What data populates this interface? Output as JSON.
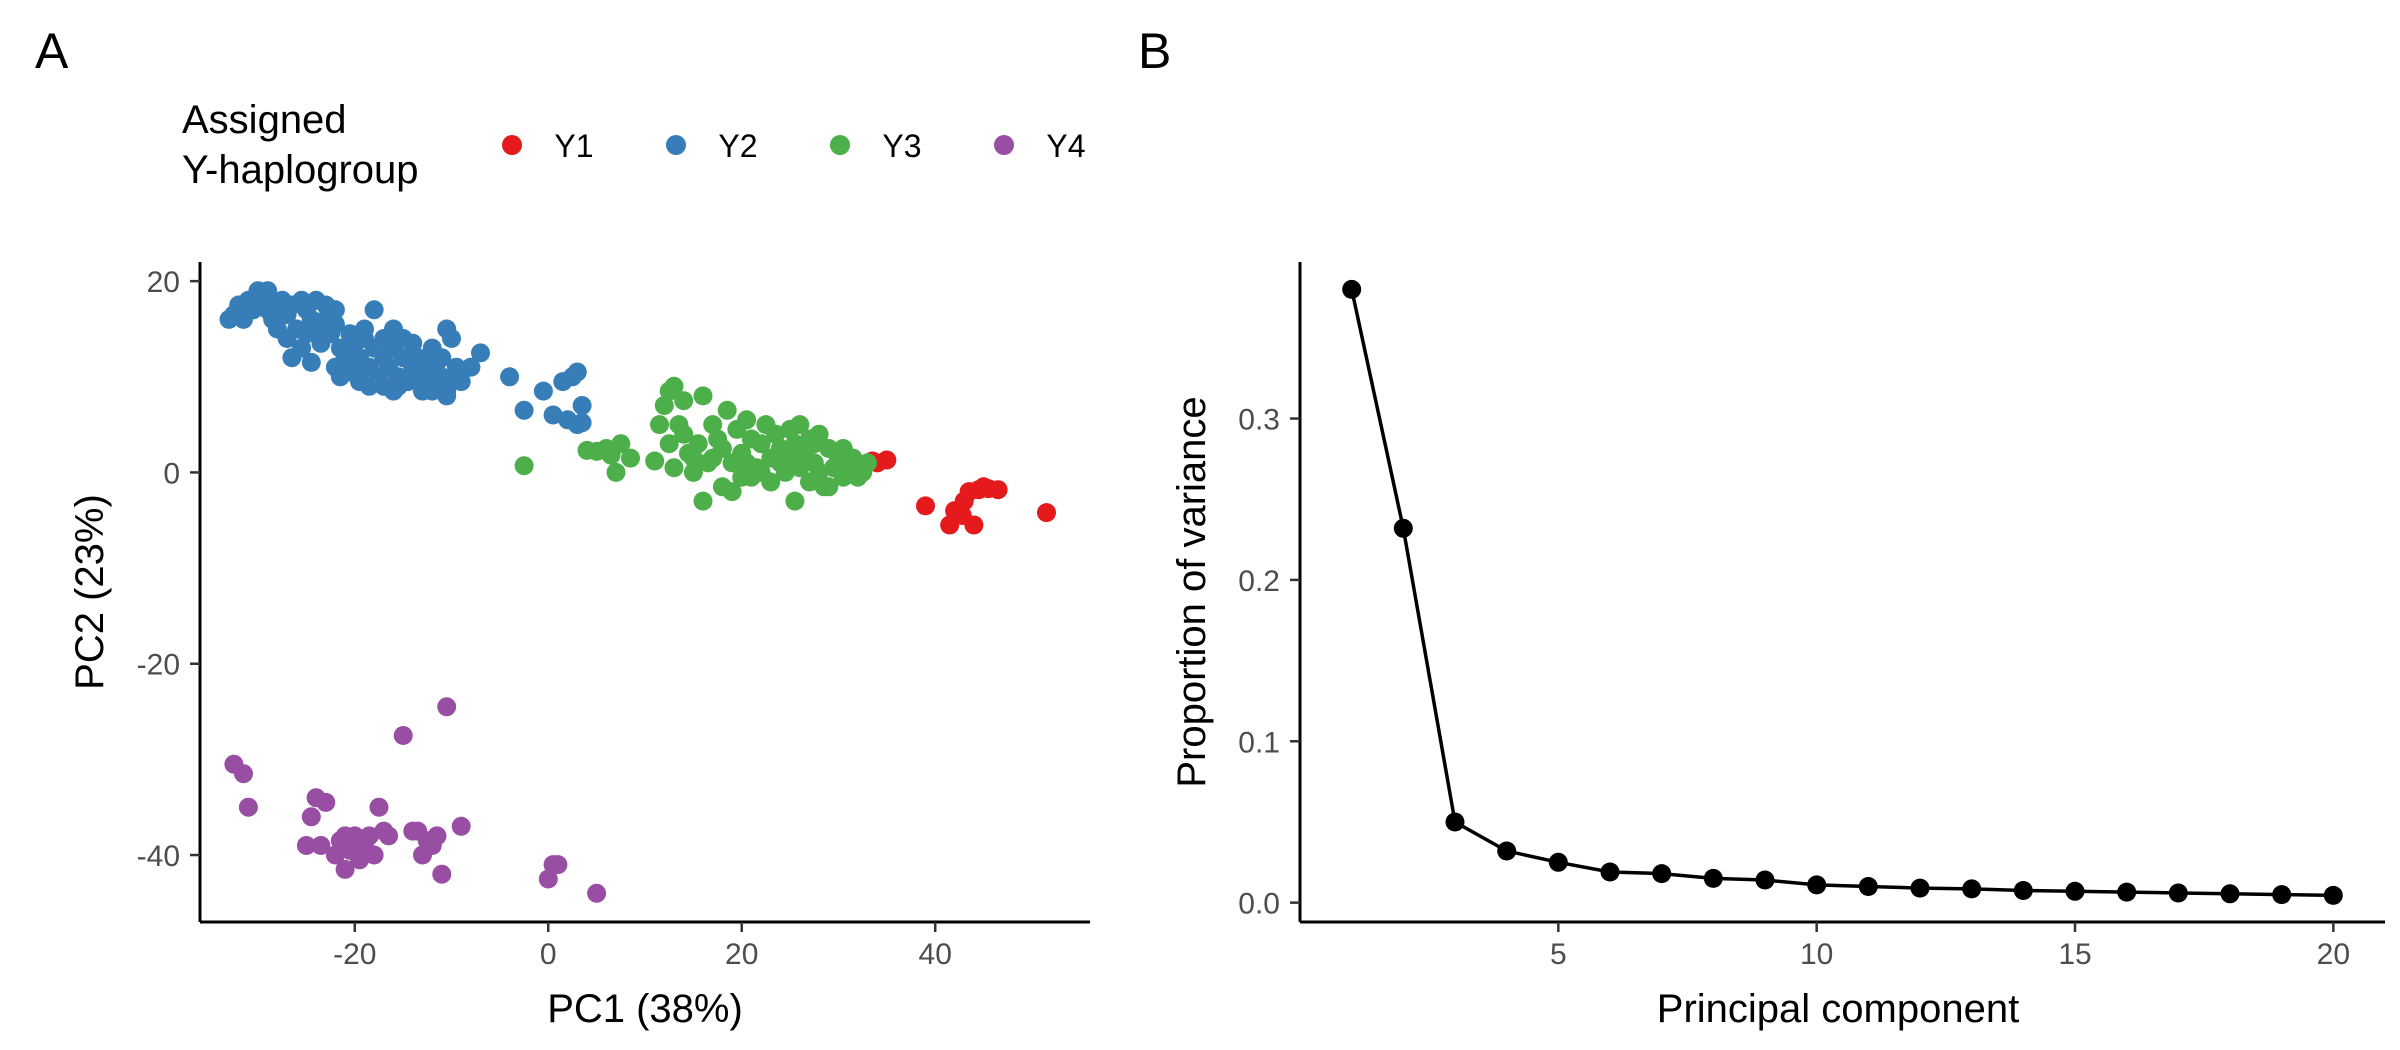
{
  "panel_labels": [
    "A",
    "B"
  ],
  "chart_data": [
    {
      "type": "scatter",
      "xlabel": "PC1 (38%)",
      "ylabel": "PC2 (23%)",
      "xlim": [
        -36,
        56
      ],
      "ylim": [
        -47,
        22
      ],
      "xticks": [
        -20,
        0,
        20,
        40
      ],
      "yticks": [
        -40,
        -20,
        0,
        20
      ],
      "legend": {
        "title_lines": [
          "Assigned",
          "Y-haplogroup"
        ],
        "placement": "top",
        "entries": [
          {
            "name": "Y1",
            "color": "#e41a1c"
          },
          {
            "name": "Y2",
            "color": "#377eb8"
          },
          {
            "name": "Y3",
            "color": "#4daf4a"
          },
          {
            "name": "Y4",
            "color": "#984ea3"
          }
        ]
      },
      "series": [
        {
          "name": "Y1",
          "color": "#e41a1c",
          "points": [
            [
              33.5,
              1.2
            ],
            [
              35,
              1.3
            ],
            [
              34,
              1.0
            ],
            [
              39,
              -3.5
            ],
            [
              41.5,
              -5.5
            ],
            [
              42,
              -4
            ],
            [
              43,
              -3
            ],
            [
              43.5,
              -2
            ],
            [
              44,
              -5.5
            ],
            [
              44.5,
              -1.8
            ],
            [
              45,
              -1.5
            ],
            [
              45.5,
              -1.7
            ],
            [
              46.5,
              -1.8
            ],
            [
              51.5,
              -4.2
            ],
            [
              42.8,
              -4.5
            ]
          ]
        },
        {
          "name": "Y2",
          "color": "#377eb8",
          "points": [
            [
              -33,
              16
            ],
            [
              -32.5,
              16.5
            ],
            [
              -32,
              17.5
            ],
            [
              -31.5,
              16
            ],
            [
              -31,
              18
            ],
            [
              -30.5,
              17
            ],
            [
              -30,
              19
            ],
            [
              -29.5,
              18.5
            ],
            [
              -29,
              17
            ],
            [
              -29,
              19
            ],
            [
              -28.5,
              16
            ],
            [
              -28,
              17.5
            ],
            [
              -27.5,
              18
            ],
            [
              -27,
              16.5
            ],
            [
              -26.5,
              17.5
            ],
            [
              -26,
              15
            ],
            [
              -25.5,
              18
            ],
            [
              -25,
              17
            ],
            [
              -25,
              14.5
            ],
            [
              -24.5,
              16
            ],
            [
              -24,
              15
            ],
            [
              -24,
              18
            ],
            [
              -23.5,
              13.5
            ],
            [
              -23,
              16
            ],
            [
              -23,
              17.5
            ],
            [
              -22.5,
              14.5
            ],
            [
              -22,
              15.5
            ],
            [
              -22,
              17
            ],
            [
              -21.5,
              13
            ],
            [
              -21,
              12
            ],
            [
              -20.5,
              14.5
            ],
            [
              -20,
              11
            ],
            [
              -20,
              13.5
            ],
            [
              -19.5,
              12
            ],
            [
              -19,
              15
            ],
            [
              -18.5,
              11
            ],
            [
              -18,
              13
            ],
            [
              -18,
              17
            ],
            [
              -17.5,
              10
            ],
            [
              -17,
              12
            ],
            [
              -17,
              14
            ],
            [
              -16.5,
              11
            ],
            [
              -16,
              13
            ],
            [
              -16,
              15
            ],
            [
              -15.5,
              10
            ],
            [
              -15,
              12
            ],
            [
              -15,
              14
            ],
            [
              -14.5,
              9.5
            ],
            [
              -14,
              11
            ],
            [
              -14,
              13.5
            ],
            [
              -13.5,
              12
            ],
            [
              -13,
              10
            ],
            [
              -12.5,
              11.5
            ],
            [
              -12,
              9
            ],
            [
              -12,
              13
            ],
            [
              -11.5,
              10.5
            ],
            [
              -11,
              9.5
            ],
            [
              -11,
              12
            ],
            [
              -10.5,
              8.5
            ],
            [
              -10.5,
              15
            ],
            [
              -10,
              10
            ],
            [
              -10,
              14
            ],
            [
              -9.5,
              11
            ],
            [
              -9,
              9.5
            ],
            [
              -26.5,
              12
            ],
            [
              -25.5,
              13
            ],
            [
              -24.5,
              11.5
            ],
            [
              -22,
              11
            ],
            [
              -21.5,
              10
            ],
            [
              -20.5,
              10.5
            ],
            [
              -19.5,
              9.5
            ],
            [
              -18.5,
              9
            ],
            [
              -17,
              9
            ],
            [
              -16,
              8.5
            ],
            [
              -15.5,
              9
            ],
            [
              -13,
              8.5
            ],
            [
              -12,
              8.5
            ],
            [
              -10.5,
              8
            ],
            [
              -27,
              14
            ],
            [
              -28,
              15
            ],
            [
              -19,
              14
            ],
            [
              -8,
              11
            ],
            [
              -7,
              12.5
            ],
            [
              -4,
              10
            ],
            [
              -2.5,
              6.5
            ],
            [
              -0.5,
              8.5
            ],
            [
              0.5,
              6
            ],
            [
              1.5,
              9.5
            ],
            [
              2,
              5.5
            ],
            [
              2.5,
              10
            ],
            [
              3,
              5
            ],
            [
              3,
              10.5
            ],
            [
              3.5,
              7
            ],
            [
              3.5,
              5.2
            ]
          ]
        },
        {
          "name": "Y3",
          "color": "#4daf4a",
          "points": [
            [
              -2.5,
              0.7
            ],
            [
              4,
              2.3
            ],
            [
              5,
              2.2
            ],
            [
              6,
              2.5
            ],
            [
              6.5,
              1.8
            ],
            [
              7,
              0
            ],
            [
              7.5,
              3
            ],
            [
              8.5,
              1.5
            ],
            [
              11,
              1.2
            ],
            [
              11.5,
              5
            ],
            [
              12,
              7
            ],
            [
              12.5,
              8.5
            ],
            [
              13,
              9
            ],
            [
              13.5,
              5
            ],
            [
              14,
              7.5
            ],
            [
              14.5,
              2
            ],
            [
              15,
              0
            ],
            [
              15.5,
              3
            ],
            [
              16,
              8
            ],
            [
              16,
              -3
            ],
            [
              16.5,
              1
            ],
            [
              17,
              5
            ],
            [
              17.5,
              3.5
            ],
            [
              18,
              2.5
            ],
            [
              18.5,
              6.5
            ],
            [
              19,
              1
            ],
            [
              19.5,
              4.5
            ],
            [
              20,
              2
            ],
            [
              20.5,
              5.5
            ],
            [
              21,
              3.5
            ],
            [
              21.5,
              0.5
            ],
            [
              22,
              3
            ],
            [
              22.5,
              5
            ],
            [
              23,
              1.5
            ],
            [
              23.5,
              4
            ],
            [
              24,
              2.5
            ],
            [
              24.5,
              0
            ],
            [
              25,
              4.5
            ],
            [
              25.5,
              3
            ],
            [
              25.5,
              -3
            ],
            [
              26,
              5
            ],
            [
              26.5,
              2
            ],
            [
              27,
              3.5
            ],
            [
              27.5,
              1
            ],
            [
              28,
              4
            ],
            [
              28.5,
              -1.5
            ],
            [
              29,
              2.5
            ],
            [
              29.5,
              0.5
            ],
            [
              30,
              1.5
            ],
            [
              30.5,
              2.5
            ],
            [
              31,
              0.5
            ],
            [
              31.5,
              1.5
            ],
            [
              32,
              -0.5
            ],
            [
              32.5,
              0
            ],
            [
              33,
              1
            ],
            [
              12.5,
              3
            ],
            [
              13,
              0.5
            ],
            [
              14,
              4
            ],
            [
              17,
              1.5
            ],
            [
              18,
              -1.5
            ],
            [
              19,
              -2
            ],
            [
              20.5,
              1
            ],
            [
              21,
              -0.5
            ],
            [
              22,
              0
            ],
            [
              23,
              -1
            ],
            [
              24,
              1
            ],
            [
              26,
              0.5
            ],
            [
              27,
              -1
            ],
            [
              28,
              0
            ],
            [
              29,
              -1.5
            ],
            [
              30.5,
              -0.5
            ],
            [
              15,
              1.5
            ],
            [
              20,
              -0.5
            ],
            [
              25,
              1.5
            ],
            [
              27.5,
              3
            ]
          ]
        },
        {
          "name": "Y4",
          "color": "#984ea3",
          "points": [
            [
              -32.5,
              -30.5
            ],
            [
              -31.5,
              -31.5
            ],
            [
              -31,
              -35
            ],
            [
              -25,
              -39
            ],
            [
              -24.5,
              -36
            ],
            [
              -24,
              -34
            ],
            [
              -23,
              -34.5
            ],
            [
              -23.5,
              -39
            ],
            [
              -22,
              -40
            ],
            [
              -21.5,
              -38.5
            ],
            [
              -21,
              -38
            ],
            [
              -21,
              -41.5
            ],
            [
              -20.5,
              -39.5
            ],
            [
              -20,
              -38
            ],
            [
              -19.5,
              -40.5
            ],
            [
              -19,
              -39
            ],
            [
              -18.5,
              -38
            ],
            [
              -18,
              -40
            ],
            [
              -17.5,
              -35
            ],
            [
              -17,
              -37.5
            ],
            [
              -16.5,
              -38
            ],
            [
              -15,
              -27.5
            ],
            [
              -14,
              -37.5
            ],
            [
              -13.5,
              -37.5
            ],
            [
              -13,
              -40
            ],
            [
              -12.5,
              -38.5
            ],
            [
              -12,
              -39
            ],
            [
              -11.5,
              -38
            ],
            [
              -11,
              -42
            ],
            [
              -10.5,
              -24.5
            ],
            [
              -9,
              -37
            ],
            [
              0,
              -42.5
            ],
            [
              0.5,
              -41
            ],
            [
              1,
              -41
            ],
            [
              5,
              -44
            ]
          ]
        }
      ]
    },
    {
      "type": "line",
      "xlabel": "Principal component",
      "ylabel": "Proportion of variance",
      "xlim": [
        0,
        21
      ],
      "ylim": [
        -0.012,
        0.397
      ],
      "xticks": [
        5,
        10,
        15,
        20
      ],
      "yticks": [
        0.0,
        0.1,
        0.2,
        0.3
      ],
      "ytick_labels": [
        "0.0",
        "0.1",
        "0.2",
        "0.3"
      ],
      "x": [
        1,
        2,
        3,
        4,
        5,
        6,
        7,
        8,
        9,
        10,
        11,
        12,
        13,
        14,
        15,
        16,
        17,
        18,
        19,
        20
      ],
      "y": [
        0.38,
        0.232,
        0.05,
        0.032,
        0.025,
        0.019,
        0.018,
        0.015,
        0.014,
        0.011,
        0.01,
        0.009,
        0.0085,
        0.0075,
        0.007,
        0.0065,
        0.006,
        0.0055,
        0.005,
        0.0045
      ],
      "color": "#000000"
    }
  ]
}
